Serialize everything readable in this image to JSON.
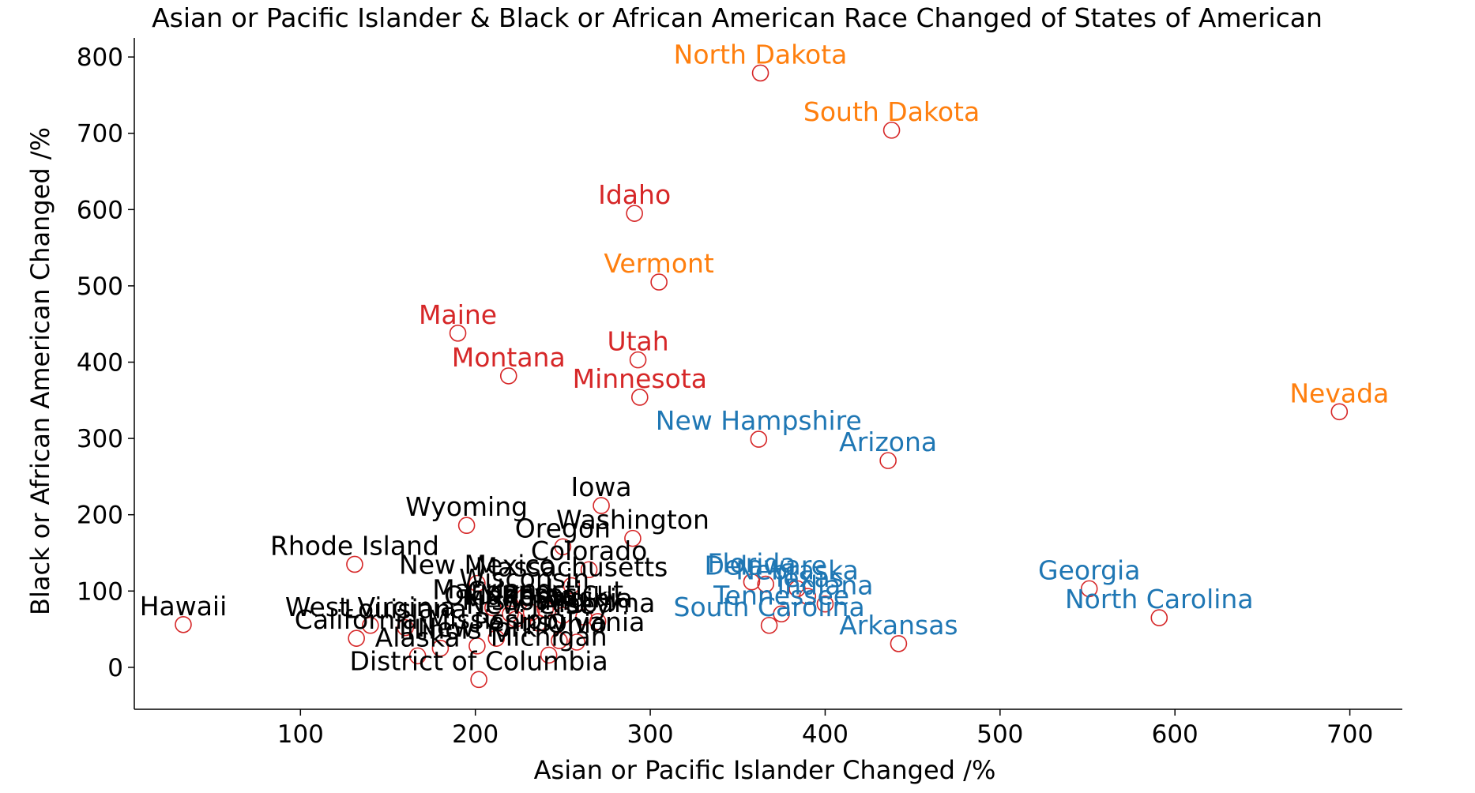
{
  "chart_data": {
    "type": "scatter",
    "title": "Asian or Pacific Islander & Black or African American Race Changed of States of American",
    "xlabel": "Asian or Pacific Islander Changed /%",
    "ylabel": "Black or African American Changed /%",
    "xlim": [
      5,
      730
    ],
    "ylim": [
      -55,
      825
    ],
    "xticks": [
      100,
      200,
      300,
      400,
      500,
      600,
      700
    ],
    "yticks": [
      0,
      100,
      200,
      300,
      400,
      500,
      600,
      700,
      800
    ],
    "marker": {
      "shape": "open-circle",
      "color": "#d62728"
    },
    "group_colors": {
      "black": "#000000",
      "blue": "#1f77b4",
      "red": "#d62728",
      "orange": "#ff7f0e"
    },
    "points": [
      {
        "label": "North Dakota",
        "x": 363,
        "y": 779,
        "group": "orange"
      },
      {
        "label": "South Dakota",
        "x": 438,
        "y": 704,
        "group": "orange"
      },
      {
        "label": "Idaho",
        "x": 291,
        "y": 595,
        "group": "red"
      },
      {
        "label": "Vermont",
        "x": 305,
        "y": 505,
        "group": "orange"
      },
      {
        "label": "Maine",
        "x": 190,
        "y": 438,
        "group": "red"
      },
      {
        "label": "Utah",
        "x": 293,
        "y": 403,
        "group": "red"
      },
      {
        "label": "Montana",
        "x": 219,
        "y": 382,
        "group": "red"
      },
      {
        "label": "Minnesota",
        "x": 294,
        "y": 354,
        "group": "red"
      },
      {
        "label": "Nevada",
        "x": 694,
        "y": 335,
        "group": "orange"
      },
      {
        "label": "New Hampshire",
        "x": 362,
        "y": 299,
        "group": "blue"
      },
      {
        "label": "Arizona",
        "x": 436,
        "y": 271,
        "group": "blue"
      },
      {
        "label": "Iowa",
        "x": 272,
        "y": 212,
        "group": "black"
      },
      {
        "label": "Wyoming",
        "x": 195,
        "y": 186,
        "group": "black"
      },
      {
        "label": "Washington",
        "x": 290,
        "y": 169,
        "group": "black"
      },
      {
        "label": "Oregon",
        "x": 250,
        "y": 158,
        "group": "black"
      },
      {
        "label": "Rhode Island",
        "x": 131,
        "y": 135,
        "group": "black"
      },
      {
        "label": "Colorado",
        "x": 265,
        "y": 128,
        "group": "black"
      },
      {
        "label": "Florida",
        "x": 358,
        "y": 112,
        "group": "blue"
      },
      {
        "label": "Delaware",
        "x": 366,
        "y": 109,
        "group": "blue"
      },
      {
        "label": "Nebraska",
        "x": 384,
        "y": 103,
        "group": "blue"
      },
      {
        "label": "Georgia",
        "x": 551,
        "y": 103,
        "group": "blue"
      },
      {
        "label": "New Mexico",
        "x": 201,
        "y": 110,
        "group": "black"
      },
      {
        "label": "Massachusetts",
        "x": 255,
        "y": 107,
        "group": "black"
      },
      {
        "label": "Texas",
        "x": 390,
        "y": 93,
        "group": "blue"
      },
      {
        "label": "Wisconsin",
        "x": 228,
        "y": 92,
        "group": "black"
      },
      {
        "label": "Indiana",
        "x": 400,
        "y": 83,
        "group": "blue"
      },
      {
        "label": "Maryland",
        "x": 210,
        "y": 78,
        "group": "black"
      },
      {
        "label": "Connecticut",
        "x": 240,
        "y": 76,
        "group": "black"
      },
      {
        "label": "Kansas",
        "x": 232,
        "y": 72,
        "group": "black"
      },
      {
        "label": "Kentucky",
        "x": 250,
        "y": 68,
        "group": "black"
      },
      {
        "label": "Oklahoma",
        "x": 220,
        "y": 70,
        "group": "black"
      },
      {
        "label": "Virginia",
        "x": 262,
        "y": 66,
        "group": "black"
      },
      {
        "label": "Tennessee",
        "x": 375,
        "y": 70,
        "group": "blue"
      },
      {
        "label": "Missouri",
        "x": 223,
        "y": 63,
        "group": "black"
      },
      {
        "label": "North Carolina",
        "x": 591,
        "y": 65,
        "group": "blue"
      },
      {
        "label": "Alabama",
        "x": 270,
        "y": 60,
        "group": "black"
      },
      {
        "label": "New Jersey",
        "x": 236,
        "y": 58,
        "group": "black"
      },
      {
        "label": "South Carolina",
        "x": 368,
        "y": 55,
        "group": "blue"
      },
      {
        "label": "Louisiana",
        "x": 160,
        "y": 52,
        "group": "black"
      },
      {
        "label": "West Virginia",
        "x": 140,
        "y": 55,
        "group": "black"
      },
      {
        "label": "Hawaii",
        "x": 33,
        "y": 56,
        "group": "black"
      },
      {
        "label": "Arkansas",
        "x": 442,
        "y": 31,
        "group": "blue"
      },
      {
        "label": "California",
        "x": 132,
        "y": 38,
        "group": "black"
      },
      {
        "label": "Mississippi",
        "x": 212,
        "y": 38,
        "group": "black"
      },
      {
        "label": "Pennsylvania",
        "x": 248,
        "y": 35,
        "group": "black"
      },
      {
        "label": "Ohio",
        "x": 258,
        "y": 33,
        "group": "black"
      },
      {
        "label": "New York",
        "x": 201,
        "y": 28,
        "group": "black"
      },
      {
        "label": "Illinois",
        "x": 180,
        "y": 25,
        "group": "black"
      },
      {
        "label": "Michigan",
        "x": 242,
        "y": 16,
        "group": "black"
      },
      {
        "label": "Alaska",
        "x": 167,
        "y": 15,
        "group": "black"
      },
      {
        "label": "District of Columbia",
        "x": 202,
        "y": -16,
        "group": "black"
      }
    ]
  }
}
